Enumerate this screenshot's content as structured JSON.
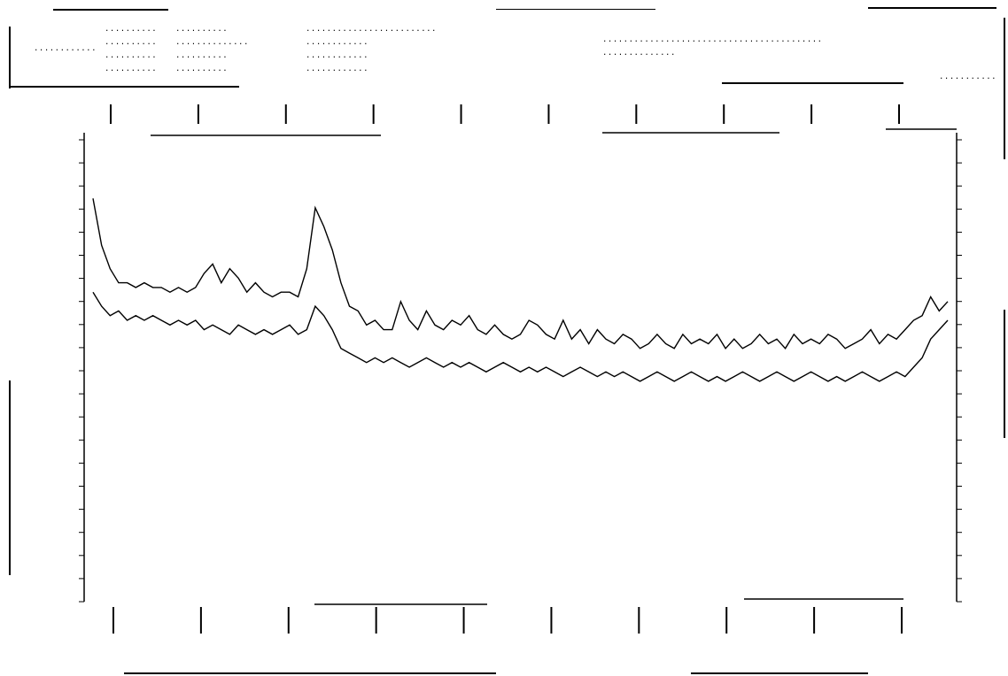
{
  "header": {
    "left_block_label": "............",
    "lines_col1": [
      "..........",
      "..........",
      "..........",
      ".........."
    ],
    "lines_col2": [
      "..........",
      "..............",
      "..........",
      ".........."
    ],
    "lines_col3": [
      ".........................",
      "............",
      "............",
      "............"
    ],
    "lines_col4": [
      "..........................................",
      ".............."
    ],
    "corner_label": "..........."
  },
  "chart_data": {
    "type": "line",
    "title": "",
    "xlabel": "",
    "ylabel": "",
    "x_range": [
      0,
      100
    ],
    "y_range": [
      0,
      100
    ],
    "grid": false,
    "legend": "none",
    "top_tick_labels": [
      "",
      "",
      "",
      "",
      "",
      "",
      "",
      "",
      "",
      ""
    ],
    "bottom_tick_labels": [
      "",
      "",
      "",
      "",
      "",
      "",
      "",
      "",
      "",
      ""
    ],
    "bottom_right_label": "",
    "series": [
      {
        "values": [
          86,
          76,
          71,
          68,
          68,
          67,
          68,
          67,
          67,
          66,
          67,
          66,
          67,
          70,
          72,
          68,
          71,
          69,
          66,
          68,
          66,
          65,
          66,
          66,
          65,
          71,
          84,
          80,
          75,
          68,
          63,
          62,
          59,
          60,
          58,
          58,
          64,
          60,
          58,
          62,
          59,
          58,
          60,
          59,
          61,
          58,
          57,
          59,
          57,
          56,
          57,
          60,
          59,
          57,
          56,
          60,
          56,
          58,
          55,
          58,
          56,
          55,
          57,
          56,
          54,
          55,
          57,
          55,
          54,
          57,
          55,
          56,
          55,
          57,
          54,
          56,
          54,
          55,
          57,
          55,
          56,
          54,
          57,
          55,
          56,
          55,
          57,
          56,
          54,
          55,
          56,
          58,
          55,
          57,
          56,
          58,
          60,
          61,
          65,
          62,
          64
        ]
      },
      {
        "values": [
          66,
          63,
          61,
          62,
          60,
          61,
          60,
          61,
          60,
          59,
          60,
          59,
          60,
          58,
          59,
          58,
          57,
          59,
          58,
          57,
          58,
          57,
          58,
          59,
          57,
          58,
          63,
          61,
          58,
          54,
          53,
          52,
          51,
          52,
          51,
          52,
          51,
          50,
          51,
          52,
          51,
          50,
          51,
          50,
          51,
          50,
          49,
          50,
          51,
          50,
          49,
          50,
          49,
          50,
          49,
          48,
          49,
          50,
          49,
          48,
          49,
          48,
          49,
          48,
          47,
          48,
          49,
          48,
          47,
          48,
          49,
          48,
          47,
          48,
          47,
          48,
          49,
          48,
          47,
          48,
          49,
          48,
          47,
          48,
          49,
          48,
          47,
          48,
          47,
          48,
          49,
          48,
          47,
          48,
          49,
          48,
          50,
          52,
          56,
          58,
          60
        ]
      }
    ]
  }
}
